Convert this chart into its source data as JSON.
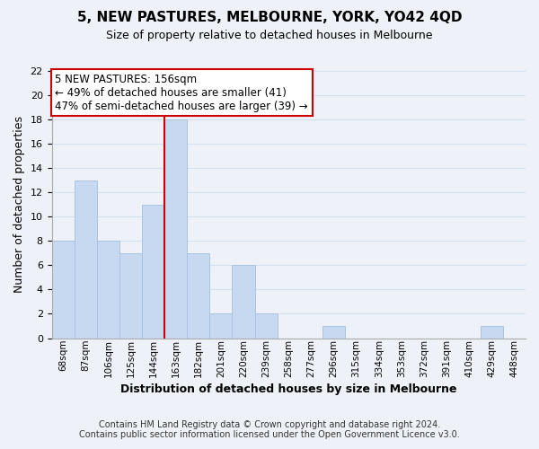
{
  "title": "5, NEW PASTURES, MELBOURNE, YORK, YO42 4QD",
  "subtitle": "Size of property relative to detached houses in Melbourne",
  "xlabel": "Distribution of detached houses by size in Melbourne",
  "ylabel": "Number of detached properties",
  "bar_labels": [
    "68sqm",
    "87sqm",
    "106sqm",
    "125sqm",
    "144sqm",
    "163sqm",
    "182sqm",
    "201sqm",
    "220sqm",
    "239sqm",
    "258sqm",
    "277sqm",
    "296sqm",
    "315sqm",
    "334sqm",
    "353sqm",
    "372sqm",
    "391sqm",
    "410sqm",
    "429sqm",
    "448sqm"
  ],
  "bar_values": [
    8,
    13,
    8,
    7,
    11,
    18,
    7,
    2,
    6,
    2,
    0,
    0,
    1,
    0,
    0,
    0,
    0,
    0,
    0,
    1,
    0
  ],
  "bar_color": "#c6d9f0",
  "bar_edge_color": "#a8c4e0",
  "vline_x_idx": 4.5,
  "vline_color": "#cc0000",
  "ylim": [
    0,
    22
  ],
  "yticks": [
    0,
    2,
    4,
    6,
    8,
    10,
    12,
    14,
    16,
    18,
    20,
    22
  ],
  "annotation_title": "5 NEW PASTURES: 156sqm",
  "annotation_line1": "← 49% of detached houses are smaller (41)",
  "annotation_line2": "47% of semi-detached houses are larger (39) →",
  "annotation_box_facecolor": "#ffffff",
  "annotation_box_edgecolor": "#cc0000",
  "footer1": "Contains HM Land Registry data © Crown copyright and database right 2024.",
  "footer2": "Contains public sector information licensed under the Open Government Licence v3.0.",
  "grid_color": "#d4dff0",
  "background_color": "#eef2f8",
  "title_fontsize": 11,
  "subtitle_fontsize": 9,
  "xlabel_fontsize": 9,
  "ylabel_fontsize": 9,
  "tick_fontsize": 8,
  "annot_fontsize": 8.5,
  "footer_fontsize": 7
}
